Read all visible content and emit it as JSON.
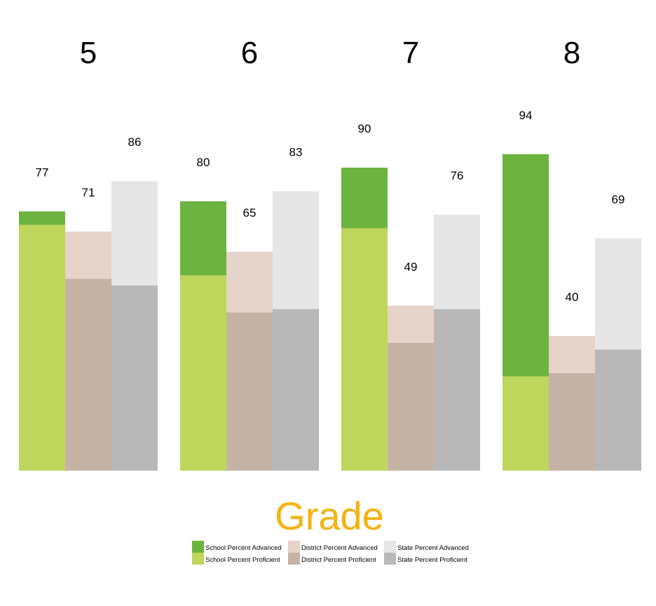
{
  "chart_data": {
    "type": "bar",
    "stacked": true,
    "xlabel": "Grade",
    "categories": [
      "5",
      "6",
      "7",
      "8"
    ],
    "groups": [
      {
        "name": "School",
        "segments": [
          {
            "name": "School Percent Proficient",
            "values": [
              73,
              58,
              72,
              28
            ],
            "color": "#bed65b"
          },
          {
            "name": "School Percent Advanced",
            "values": [
              4,
              22,
              18,
              66
            ],
            "color": "#6db33f"
          }
        ],
        "totals": [
          77,
          80,
          90,
          94
        ]
      },
      {
        "name": "District",
        "segments": [
          {
            "name": "District Percent Proficient",
            "values": [
              57,
              47,
              38,
              29
            ],
            "color": "#c4b3a5"
          },
          {
            "name": "District Percent Advanced",
            "values": [
              14,
              18,
              11,
              11
            ],
            "color": "#e6d3c9"
          }
        ],
        "totals": [
          71,
          65,
          49,
          40
        ]
      },
      {
        "name": "State",
        "segments": [
          {
            "name": "State Percent Proficient",
            "values": [
              55,
              48,
              48,
              36
            ],
            "color": "#b8b8b8"
          },
          {
            "name": "State Percent Advanced",
            "values": [
              31,
              35,
              28,
              33
            ],
            "color": "#e6e6e6"
          }
        ],
        "totals": [
          86,
          83,
          76,
          69
        ]
      }
    ],
    "ylim": [
      0,
      100
    ],
    "grid": false,
    "legend": {
      "placement": "bottom",
      "rows": [
        [
          "School Percent Advanced",
          "District Percent Advanced",
          "State Percent Advanced"
        ],
        [
          "School Percent Proficient",
          "District Percent Proficient",
          "State Percent Proficient"
        ]
      ]
    },
    "colors": {
      "xlabel": "#f5b20f",
      "category_label": "#000000",
      "value_label": "#000000"
    }
  }
}
